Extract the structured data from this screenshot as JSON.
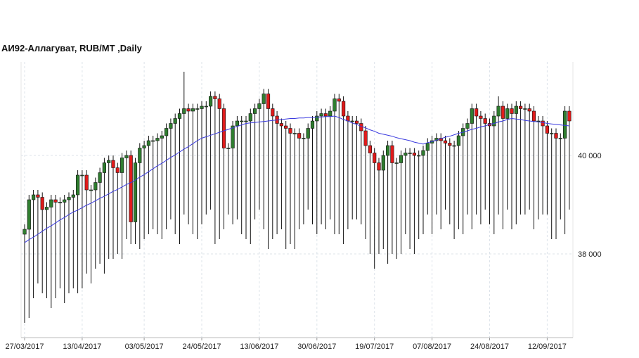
{
  "chart_data": {
    "type": "candlestick",
    "title": "АИ92-Аллагуват,  RUB/MT ,Daily",
    "categories": [
      "27/03/2017",
      null,
      null,
      null,
      null,
      null,
      null,
      null,
      null,
      null,
      null,
      null,
      null,
      "13/04/2017",
      null,
      null,
      null,
      null,
      null,
      null,
      null,
      null,
      null,
      null,
      null,
      null,
      null,
      "03/05/2017",
      null,
      null,
      null,
      null,
      null,
      null,
      null,
      null,
      null,
      null,
      null,
      null,
      "24/05/2017",
      null,
      null,
      null,
      null,
      null,
      null,
      null,
      null,
      null,
      null,
      null,
      null,
      "13/06/2017",
      null,
      null,
      null,
      null,
      null,
      null,
      null,
      null,
      null,
      null,
      null,
      null,
      "30/06/2017",
      null,
      null,
      null,
      null,
      null,
      null,
      null,
      null,
      null,
      null,
      null,
      null,
      "19/07/2017",
      null,
      null,
      null,
      null,
      null,
      null,
      null,
      null,
      null,
      null,
      null,
      null,
      "07/08/2017",
      null,
      null,
      null,
      null,
      null,
      null,
      null,
      null,
      null,
      null,
      null,
      null,
      "24/08/2017",
      null,
      null,
      null,
      null,
      null,
      null,
      null,
      null,
      null,
      null,
      null,
      null,
      "12/09/2017",
      null,
      null,
      null,
      null,
      null
    ],
    "open": [
      38400,
      38500,
      39100,
      39200,
      39150,
      38900,
      38950,
      39100,
      39050,
      39050,
      39100,
      39150,
      39200,
      39600,
      39600,
      39300,
      39300,
      39450,
      39650,
      39850,
      39900,
      39750,
      39650,
      39950,
      40000,
      38650,
      39850,
      40150,
      40200,
      40300,
      40300,
      40350,
      40400,
      40550,
      40650,
      40750,
      40850,
      40950,
      40900,
      40950,
      40950,
      41000,
      41000,
      41200,
      41150,
      40950,
      40150,
      40150,
      40600,
      40700,
      40700,
      40700,
      40850,
      40950,
      41050,
      41250,
      40950,
      40800,
      40650,
      40600,
      40550,
      40450,
      40450,
      40350,
      40350,
      40550,
      40700,
      40800,
      40850,
      40800,
      40900,
      41150,
      41100,
      40800,
      40700,
      40700,
      40650,
      40500,
      40200,
      40050,
      39850,
      39700,
      40000,
      40200,
      39850,
      39850,
      40000,
      40050,
      40050,
      40000,
      40000,
      40100,
      40250,
      40300,
      40350,
      40300,
      40250,
      40200,
      40200,
      40400,
      40550,
      40650,
      40950,
      40800,
      40750,
      40650,
      40600,
      40800,
      41000,
      40750,
      40950,
      40850,
      41000,
      40950,
      40950,
      40900,
      40700,
      40700,
      40600,
      40450,
      40450,
      40350,
      40350,
      40900
    ],
    "high": [
      38600,
      39200,
      39300,
      39300,
      39250,
      39050,
      39200,
      39200,
      39150,
      39200,
      39250,
      39300,
      39700,
      39700,
      39700,
      39400,
      39550,
      39750,
      39950,
      40000,
      40000,
      39850,
      40050,
      40100,
      40100,
      39950,
      40250,
      40300,
      40400,
      40400,
      40450,
      40500,
      40650,
      40750,
      40850,
      40950,
      41700,
      41050,
      41050,
      41050,
      41100,
      41100,
      41300,
      41300,
      41250,
      41050,
      40250,
      40700,
      40800,
      40800,
      40800,
      40950,
      41050,
      41150,
      41350,
      41350,
      41050,
      40900,
      40750,
      40700,
      40650,
      40550,
      40550,
      40450,
      40650,
      40800,
      40900,
      40950,
      40950,
      41000,
      41250,
      41250,
      41200,
      40900,
      40800,
      40800,
      40750,
      40600,
      40300,
      40150,
      39950,
      40100,
      40300,
      40300,
      39950,
      40100,
      40150,
      40150,
      40150,
      40100,
      40200,
      40350,
      40400,
      40450,
      40450,
      40400,
      40350,
      40300,
      40500,
      40650,
      40750,
      41050,
      41050,
      40900,
      40850,
      40750,
      40900,
      41200,
      41100,
      41050,
      41050,
      41100,
      41100,
      41050,
      41050,
      41000,
      40800,
      40800,
      40700,
      40550,
      40550,
      40450,
      41000,
      41000
    ],
    "low": [
      36600,
      36700,
      37100,
      37400,
      37200,
      37100,
      36900,
      37100,
      37300,
      37000,
      37200,
      37300,
      37200,
      37300,
      37600,
      37400,
      37700,
      37800,
      37600,
      37900,
      37900,
      38000,
      37900,
      38300,
      38200,
      38200,
      38100,
      38300,
      38400,
      38500,
      38400,
      38300,
      38500,
      38700,
      38400,
      38200,
      38800,
      38600,
      38400,
      38300,
      38600,
      38800,
      38900,
      38200,
      38300,
      38500,
      38800,
      38600,
      38700,
      38400,
      38300,
      38200,
      38700,
      38900,
      38500,
      38100,
      38300,
      38400,
      38500,
      38100,
      38200,
      38100,
      38500,
      38600,
      38900,
      38600,
      38400,
      38600,
      38500,
      38700,
      38400,
      38400,
      38200,
      38500,
      38700,
      38700,
      38600,
      38300,
      38000,
      37700,
      38000,
      38100,
      37800,
      38000,
      37900,
      38000,
      38400,
      38100,
      38000,
      38300,
      38400,
      38800,
      38400,
      38800,
      38500,
      38900,
      38600,
      38300,
      38500,
      38400,
      38800,
      38500,
      38800,
      38600,
      38900,
      38600,
      38400,
      38800,
      38500,
      38900,
      38500,
      38600,
      38800,
      38800,
      38900,
      38500,
      38700,
      38800,
      38800,
      38300,
      38300,
      38700,
      38400,
      38900
    ],
    "close": [
      38500,
      39100,
      39200,
      39150,
      38900,
      38950,
      39100,
      39050,
      39050,
      39100,
      39150,
      39200,
      39600,
      39600,
      39300,
      39300,
      39450,
      39650,
      39850,
      39900,
      39750,
      39650,
      39950,
      40000,
      38650,
      39850,
      40150,
      40200,
      40300,
      40300,
      40350,
      40400,
      40550,
      40650,
      40750,
      40850,
      40950,
      40900,
      40950,
      40950,
      41000,
      41000,
      41200,
      41150,
      40950,
      40150,
      40150,
      40600,
      40700,
      40700,
      40700,
      40850,
      40950,
      41050,
      41250,
      40950,
      40800,
      40650,
      40600,
      40550,
      40450,
      40450,
      40350,
      40350,
      40550,
      40700,
      40800,
      40850,
      40800,
      40900,
      41150,
      41100,
      40800,
      40700,
      40700,
      40650,
      40500,
      40200,
      40050,
      39850,
      39700,
      40000,
      40200,
      39850,
      39850,
      40000,
      40050,
      40050,
      40000,
      40000,
      40100,
      40250,
      40300,
      40350,
      40300,
      40250,
      40200,
      40200,
      40400,
      40550,
      40650,
      40950,
      40800,
      40750,
      40650,
      40600,
      40800,
      41000,
      40750,
      40950,
      40850,
      41000,
      40950,
      40950,
      40900,
      40700,
      40700,
      40600,
      40450,
      40450,
      40350,
      40350,
      40900,
      40700
    ],
    "up_color": "#2f7d2f",
    "down_color": "#e01b1b",
    "ma": {
      "color": "#3a3adf",
      "values": [
        38230,
        38290,
        38340,
        38400,
        38460,
        38520,
        38570,
        38630,
        38690,
        38740,
        38800,
        38850,
        38890,
        38940,
        38990,
        39030,
        39080,
        39130,
        39170,
        39220,
        39270,
        39310,
        39360,
        39410,
        39450,
        39500,
        39560,
        39610,
        39670,
        39730,
        39790,
        39840,
        39900,
        39960,
        40010,
        40070,
        40130,
        40180,
        40240,
        40300,
        40350,
        40380,
        40410,
        40440,
        40470,
        40500,
        40530,
        40560,
        40590,
        40620,
        40650,
        40660,
        40670,
        40680,
        40690,
        40700,
        40710,
        40720,
        40730,
        40740,
        40750,
        40750,
        40760,
        40760,
        40770,
        40770,
        40780,
        40780,
        40790,
        40790,
        40800,
        40770,
        40730,
        40700,
        40660,
        40630,
        40590,
        40560,
        40520,
        40490,
        40450,
        40430,
        40410,
        40390,
        40360,
        40340,
        40320,
        40300,
        40270,
        40250,
        40230,
        40260,
        40280,
        40310,
        40340,
        40370,
        40390,
        40420,
        40450,
        40470,
        40500,
        40530,
        40550,
        40580,
        40600,
        40630,
        40650,
        40680,
        40700,
        40730,
        40750,
        40740,
        40730,
        40710,
        40700,
        40690,
        40680,
        40670,
        40650,
        40640,
        40630,
        40620,
        40610,
        40600
      ]
    },
    "ylim": [
      36300,
      41900
    ],
    "yticks": [
      {
        "value": 40000,
        "label": "40 000"
      },
      {
        "value": 38000,
        "label": "38 000"
      }
    ],
    "grid": true
  }
}
